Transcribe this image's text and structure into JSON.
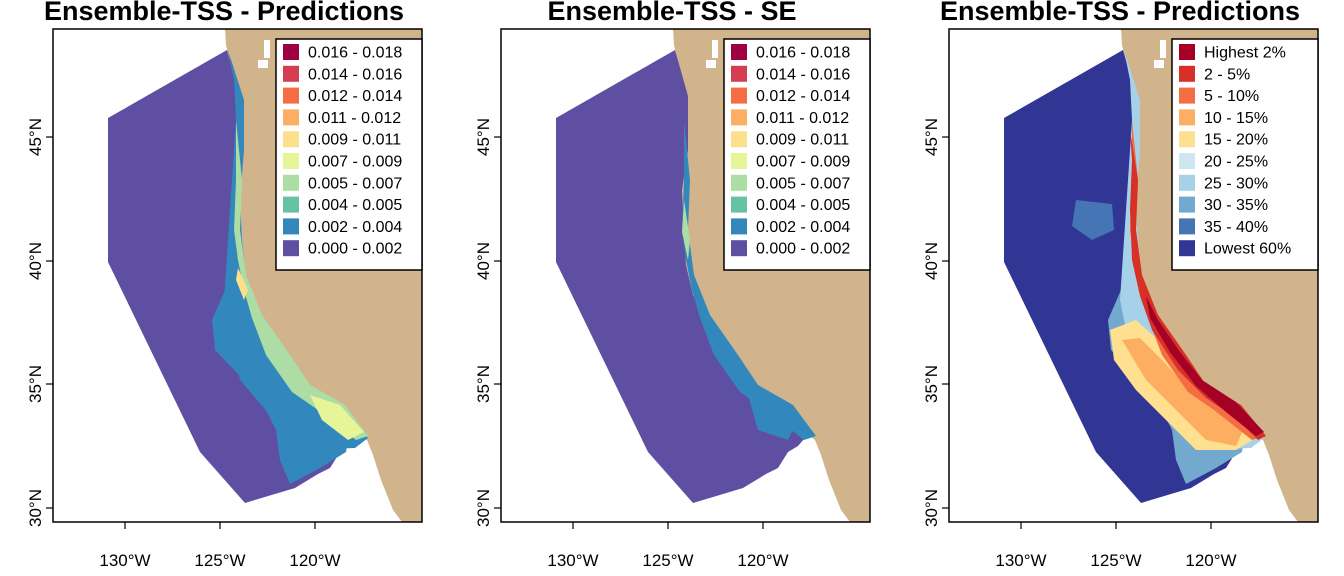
{
  "panels": [
    {
      "title": "Ensemble-TSS - Predictions",
      "palette": "value",
      "legend": {
        "entries": [
          {
            "label": "0.016 - 0.018",
            "color": "#9e0142"
          },
          {
            "label": "0.014 - 0.016",
            "color": "#d53e4f"
          },
          {
            "label": "0.012 - 0.014",
            "color": "#f46d43"
          },
          {
            "label": "0.011 - 0.012",
            "color": "#fdae61"
          },
          {
            "label": "0.009 - 0.011",
            "color": "#fee08b"
          },
          {
            "label": "0.007 - 0.009",
            "color": "#e6f598"
          },
          {
            "label": "0.005 - 0.007",
            "color": "#abdda4"
          },
          {
            "label": "0.004 - 0.005",
            "color": "#66c2a5"
          },
          {
            "label": "0.002 - 0.004",
            "color": "#3288bd"
          },
          {
            "label": "0.000 - 0.002",
            "color": "#5e4fa2"
          }
        ]
      }
    },
    {
      "title": "Ensemble-TSS - SE",
      "palette": "se",
      "legend": {
        "entries": [
          {
            "label": "0.016 - 0.018",
            "color": "#9e0142"
          },
          {
            "label": "0.014 - 0.016",
            "color": "#d53e4f"
          },
          {
            "label": "0.012 - 0.014",
            "color": "#f46d43"
          },
          {
            "label": "0.011 - 0.012",
            "color": "#fdae61"
          },
          {
            "label": "0.009 - 0.011",
            "color": "#fee08b"
          },
          {
            "label": "0.007 - 0.009",
            "color": "#e6f598"
          },
          {
            "label": "0.005 - 0.007",
            "color": "#abdda4"
          },
          {
            "label": "0.004 - 0.005",
            "color": "#66c2a5"
          },
          {
            "label": "0.002 - 0.004",
            "color": "#3288bd"
          },
          {
            "label": "0.000 - 0.002",
            "color": "#5e4fa2"
          }
        ]
      }
    },
    {
      "title": "Ensemble-TSS - Predictions",
      "palette": "rank",
      "legend": {
        "entries": [
          {
            "label": "Highest 2%",
            "color": "#a50026"
          },
          {
            "label": "2 - 5%",
            "color": "#d73027"
          },
          {
            "label": "5 - 10%",
            "color": "#f46d43"
          },
          {
            "label": "10 - 15%",
            "color": "#fdae61"
          },
          {
            "label": "15 - 20%",
            "color": "#fee090"
          },
          {
            "label": "20 - 25%",
            "color": "#cfe6f2"
          },
          {
            "label": "25 - 30%",
            "color": "#a6d1e8"
          },
          {
            "label": "30 - 35%",
            "color": "#74a9cf"
          },
          {
            "label": "35 - 40%",
            "color": "#4575b4"
          },
          {
            "label": "Lowest 60%",
            "color": "#313695"
          }
        ]
      }
    }
  ],
  "axes": {
    "x_ticks": [
      "130°W",
      "125°W",
      "120°W"
    ],
    "y_ticks": [
      "30°N",
      "35°N",
      "40°N",
      "45°N"
    ]
  },
  "colors": {
    "land": "#d2b48c",
    "background": "#ffffff"
  }
}
